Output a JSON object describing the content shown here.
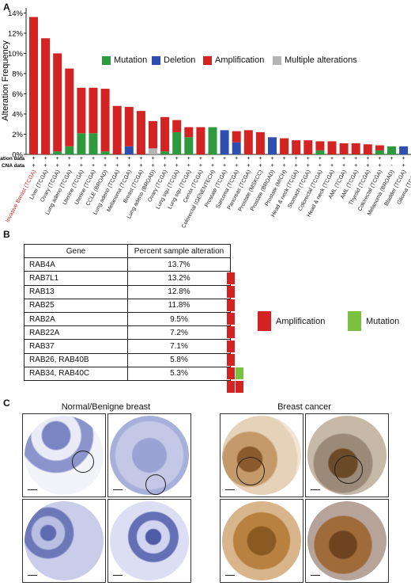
{
  "panels": {
    "a": "A",
    "b": "B",
    "c": "C"
  },
  "chart_data": {
    "type": "bar",
    "ylabel": "Alteration Frequency",
    "yticks": [
      "0%",
      "2%",
      "4%",
      "6%",
      "8%",
      "10%",
      "12%",
      "14%"
    ],
    "ylim": [
      0,
      14.5
    ],
    "legend": [
      {
        "name": "Mutation",
        "color": "#2e9a3e"
      },
      {
        "name": "Deletion",
        "color": "#2f4fb0"
      },
      {
        "name": "Amplification",
        "color": "#d42323"
      },
      {
        "name": "Multiple alterations",
        "color": "#b4b4b4"
      }
    ],
    "row_labels": [
      "Mutation data",
      "CNA data"
    ],
    "categories": [
      "Invasive Breast (TCGA)",
      "Liver (TCGA)",
      "Ovary (TCGA)",
      "Lung adeno (TCGA)",
      "Uterine (TCGA)",
      "Uterine (TCGA)",
      "CCLE (BROAD)",
      "Lung adeno (TCGA)",
      "Melanoma (TCGA)",
      "Breast (TCGA)",
      "Lung adeno (BROAD)",
      "Ovary (TCGA)",
      "Lung squ (TCGA)",
      "Lung squ (TCGA)",
      "Cervix (TCGA)",
      "Colorectal (GENENTECH)",
      "Prostate (TCGA)",
      "Sarcoma (TCGA)",
      "Pancreas (TCGA)",
      "Prostate (MSKCC)",
      "Prostate (BROAD)",
      "Prostate (MICH)",
      "Head & neck (TCGA)",
      "Stomach (TCGA)",
      "Colorectal (TCGA)",
      "Head & neck (TCGA)",
      "AML (TCGA)",
      "AML (TCGA)",
      "Thyroid (TCGA)",
      "Colorectal (TCGA)",
      "Melanoma (BROAD)",
      "Bladder (TCGA)",
      "Glioma (TCGA)"
    ],
    "highlight_category": "Invasive Breast (TCGA)",
    "series": [
      {
        "name": "Mutation",
        "values": [
          0,
          0,
          0.3,
          0.8,
          2.1,
          2.1,
          0.3,
          0,
          0,
          0,
          0,
          0.3,
          2.2,
          1.7,
          0,
          2.7,
          0,
          0,
          0,
          0,
          0,
          0,
          0,
          0,
          0.4,
          0,
          0,
          0,
          0,
          0.4,
          0.8,
          0,
          0
        ]
      },
      {
        "name": "Deletion",
        "values": [
          0,
          0,
          0,
          0,
          0,
          0,
          0,
          0,
          0.8,
          0,
          0,
          0,
          0,
          0,
          0,
          0,
          2.4,
          1.2,
          0,
          0,
          1.7,
          0,
          0,
          0,
          0,
          0,
          0,
          0,
          0,
          0,
          0,
          0.8,
          0.4
        ]
      },
      {
        "name": "Amplification",
        "values": [
          13.6,
          11.5,
          9.7,
          7.7,
          4.5,
          4.5,
          6.2,
          4.8,
          3.9,
          4.3,
          2.7,
          3.4,
          1.2,
          1.0,
          2.7,
          0,
          0,
          1.1,
          2.4,
          2.2,
          0,
          1.6,
          1.4,
          1.4,
          0.9,
          1.3,
          1.1,
          1.1,
          1.0,
          0.5,
          0,
          0,
          0
        ]
      },
      {
        "name": "Multiple alterations",
        "values": [
          0,
          0,
          0,
          0,
          0,
          0,
          0,
          0,
          0,
          0,
          0.6,
          0,
          0,
          0,
          0,
          0,
          0,
          0,
          0,
          0,
          0,
          0,
          0,
          0,
          0,
          0,
          0,
          0,
          0,
          0,
          0,
          0,
          0
        ]
      }
    ],
    "mutation_data": [
      "+",
      "+",
      "+",
      "+",
      "+",
      "+",
      "+",
      "+",
      "+",
      "+",
      "+",
      "+",
      "+",
      "+",
      "+",
      "+",
      "+",
      "+",
      "+",
      "+",
      "+",
      "+",
      "+",
      "+",
      "+",
      "+",
      "+",
      "+",
      "+",
      "+",
      "+",
      "+",
      "+"
    ],
    "cna_data": [
      "+",
      "+",
      "+",
      "+",
      "+",
      "+",
      "+",
      "+",
      "+",
      "+",
      "+",
      "+",
      "+",
      "+",
      "+",
      "+",
      "+",
      "+",
      "+",
      "+",
      "+",
      "+",
      "+",
      "+",
      "+",
      "+",
      "+",
      "+",
      "+",
      "+",
      "-",
      "+",
      "+"
    ]
  },
  "table": {
    "headers": [
      "Gene",
      "Percent sample alteration"
    ],
    "rows": [
      {
        "gene": "RAB4A",
        "pct": "13.7%",
        "alts": [
          "amp"
        ]
      },
      {
        "gene": "RAB7L1",
        "pct": "13.2%",
        "alts": [
          "amp"
        ]
      },
      {
        "gene": "RAB13",
        "pct": "12.8%",
        "alts": [
          "amp"
        ]
      },
      {
        "gene": "RAB25",
        "pct": "11.8%",
        "alts": [
          "amp"
        ]
      },
      {
        "gene": "RAB2A",
        "pct": "9.5%",
        "alts": [
          "amp"
        ]
      },
      {
        "gene": "RAB22A",
        "pct": "7.2%",
        "alts": [
          "amp"
        ]
      },
      {
        "gene": "RAB37",
        "pct": "7.1%",
        "alts": [
          "amp"
        ]
      },
      {
        "gene": "RAB26, RAB40B",
        "pct": "5.8%",
        "alts": [
          "amp",
          "mut"
        ]
      },
      {
        "gene": "RAB34, RAB40C",
        "pct": "5.3%",
        "alts": [
          "amp",
          "amp"
        ]
      }
    ],
    "legend": [
      {
        "name": "Amplification",
        "color": "#d42323"
      },
      {
        "name": "Mutation",
        "color": "#7ac142"
      }
    ]
  },
  "panel_c": {
    "normal_title": "Normal/Benigne breast",
    "cancer_title": "Breast cancer"
  }
}
